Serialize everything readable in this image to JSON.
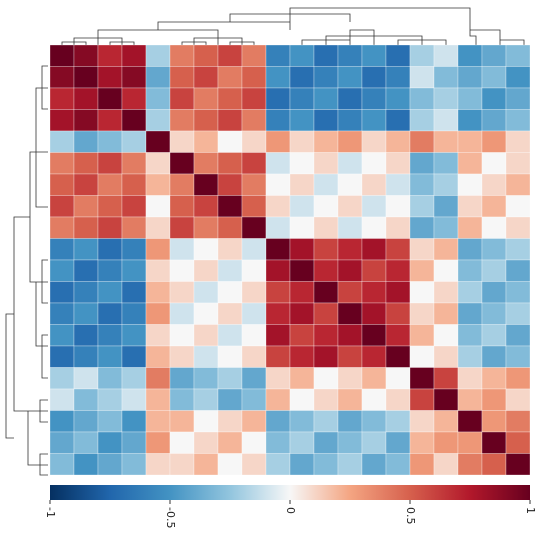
{
  "chart_data": {
    "type": "heatmap",
    "z": [
      [
        1,
        0.9,
        0.7,
        0.8,
        -0.2,
        0.4,
        0.5,
        0.6,
        0.4,
        -0.6,
        -0.5,
        -0.7,
        -0.6,
        -0.5,
        -0.7,
        -0.2,
        -0.1,
        -0.5,
        -0.4,
        -0.3
      ],
      [
        0.9,
        1,
        0.8,
        0.9,
        -0.4,
        0.5,
        0.6,
        0.4,
        0.5,
        -0.5,
        -0.7,
        -0.6,
        -0.5,
        -0.7,
        -0.6,
        -0.1,
        -0.3,
        -0.4,
        -0.3,
        -0.5
      ],
      [
        0.7,
        0.8,
        1,
        0.7,
        -0.3,
        0.6,
        0.4,
        0.5,
        0.6,
        -0.7,
        -0.6,
        -0.5,
        -0.7,
        -0.6,
        -0.5,
        -0.3,
        -0.2,
        -0.3,
        -0.5,
        -0.4
      ],
      [
        0.8,
        0.9,
        0.7,
        1,
        -0.2,
        0.4,
        0.5,
        0.6,
        0.4,
        -0.6,
        -0.5,
        -0.7,
        -0.6,
        -0.5,
        -0.7,
        -0.2,
        -0.1,
        -0.5,
        -0.4,
        -0.3
      ],
      [
        -0.2,
        -0.4,
        -0.3,
        -0.2,
        1,
        0.1,
        0.2,
        0,
        0.1,
        0.3,
        0.1,
        0.2,
        0.3,
        0.1,
        0.2,
        0.4,
        0.2,
        0.2,
        0.3,
        0.1
      ],
      [
        0.4,
        0.5,
        0.6,
        0.4,
        0.1,
        1,
        0.4,
        0.5,
        0.6,
        -0.1,
        0,
        0.1,
        -0.1,
        0,
        0.1,
        -0.4,
        -0.3,
        0.2,
        0,
        0.1
      ],
      [
        0.5,
        0.6,
        0.4,
        0.5,
        0.2,
        0.4,
        1,
        0.6,
        0.4,
        0,
        0.1,
        -0.1,
        0,
        0.1,
        -0.1,
        -0.3,
        -0.2,
        0,
        0.1,
        0.2
      ],
      [
        0.6,
        0.4,
        0.5,
        0.6,
        0,
        0.5,
        0.6,
        1,
        0.5,
        0.1,
        -0.1,
        0,
        0.1,
        -0.1,
        0,
        -0.2,
        -0.4,
        0.1,
        0.2,
        0
      ],
      [
        0.4,
        0.5,
        0.6,
        0.4,
        0.1,
        0.6,
        0.4,
        0.5,
        1,
        -0.1,
        0,
        0.1,
        -0.1,
        0,
        0.1,
        -0.4,
        -0.3,
        0.2,
        0,
        0.1
      ],
      [
        -0.6,
        -0.5,
        -0.7,
        -0.6,
        0.3,
        -0.1,
        0,
        0.1,
        -0.1,
        1,
        0.8,
        0.6,
        0.7,
        0.8,
        0.6,
        0.1,
        0.2,
        -0.4,
        -0.3,
        -0.2
      ],
      [
        -0.5,
        -0.7,
        -0.6,
        -0.5,
        0.1,
        0,
        0.1,
        -0.1,
        0,
        0.8,
        1,
        0.7,
        0.8,
        0.6,
        0.7,
        0.2,
        0,
        -0.3,
        -0.2,
        -0.4
      ],
      [
        -0.7,
        -0.6,
        -0.5,
        -0.7,
        0.2,
        0.1,
        -0.1,
        0,
        0.1,
        0.6,
        0.7,
        1,
        0.6,
        0.7,
        0.8,
        0,
        0.1,
        -0.2,
        -0.4,
        -0.3
      ],
      [
        -0.6,
        -0.5,
        -0.7,
        -0.6,
        0.3,
        -0.1,
        0,
        0.1,
        -0.1,
        0.7,
        0.8,
        0.6,
        1,
        0.8,
        0.6,
        0.1,
        0.2,
        -0.4,
        -0.3,
        -0.2
      ],
      [
        -0.5,
        -0.7,
        -0.6,
        -0.5,
        0.1,
        0,
        0.1,
        -0.1,
        0,
        0.8,
        0.6,
        0.7,
        0.8,
        1,
        0.7,
        0.2,
        0,
        -0.3,
        -0.2,
        -0.4
      ],
      [
        -0.7,
        -0.6,
        -0.5,
        -0.7,
        0.2,
        0.1,
        -0.1,
        0,
        0.1,
        0.6,
        0.7,
        0.8,
        0.6,
        0.7,
        1,
        0,
        0.1,
        -0.2,
        -0.4,
        -0.3
      ],
      [
        -0.2,
        -0.1,
        -0.3,
        -0.2,
        0.4,
        -0.4,
        -0.3,
        -0.2,
        -0.4,
        0.1,
        0.2,
        0,
        0.1,
        0.2,
        0,
        1,
        0.6,
        0.1,
        0.2,
        0.3
      ],
      [
        -0.1,
        -0.3,
        -0.2,
        -0.1,
        0.2,
        -0.3,
        -0.2,
        -0.4,
        -0.3,
        0.2,
        0,
        0.1,
        0.2,
        0,
        0.1,
        0.6,
        1,
        0.2,
        0.3,
        0.1
      ],
      [
        -0.5,
        -0.4,
        -0.3,
        -0.5,
        0.2,
        0.2,
        0,
        0.1,
        0.2,
        -0.4,
        -0.3,
        -0.2,
        -0.4,
        -0.3,
        -0.2,
        0.1,
        0.2,
        1,
        0.3,
        0.4
      ],
      [
        -0.4,
        -0.3,
        -0.5,
        -0.4,
        0.3,
        0,
        0.1,
        0.2,
        0,
        -0.3,
        -0.2,
        -0.4,
        -0.3,
        -0.2,
        -0.4,
        0.2,
        0.3,
        0.3,
        1,
        0.5
      ],
      [
        -0.3,
        -0.5,
        -0.4,
        -0.3,
        0.1,
        0.1,
        0.2,
        0,
        0.1,
        -0.2,
        -0.4,
        -0.3,
        -0.2,
        -0.4,
        -0.3,
        0.3,
        0.1,
        0.4,
        0.5,
        1
      ]
    ],
    "zlim": [
      -1,
      1
    ],
    "colorbar_ticks": [
      -1,
      -0.5,
      0,
      0.5,
      1
    ],
    "colors": [
      "#053061",
      "#2166ac",
      "#4393c3",
      "#92c5de",
      "#f7f7f7",
      "#f4a582",
      "#d6604d",
      "#b2182b",
      "#67001f"
    ]
  }
}
